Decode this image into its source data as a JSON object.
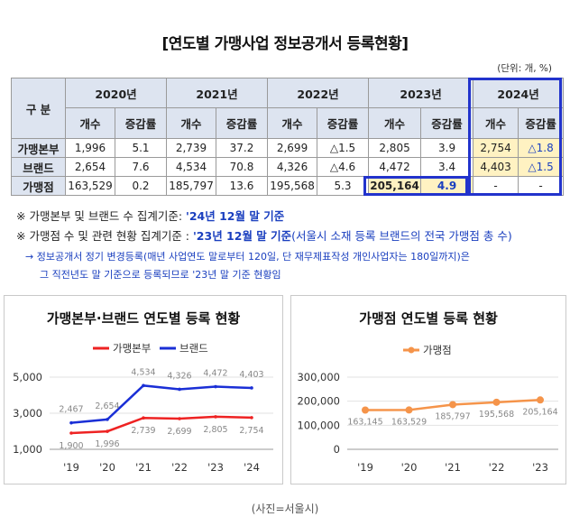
{
  "title": "[연도별 가맹사업 정보공개서 등록현황]",
  "unit": "(단위: 개, %)",
  "table": {
    "corner": "구  분",
    "years": [
      "2020년",
      "2021년",
      "2022년",
      "2023년",
      "2024년"
    ],
    "sub_count": "개수",
    "sub_rate": "증감률",
    "rows": [
      {
        "label": "가맹본부",
        "cells": [
          "1,996",
          "5.1",
          "2,739",
          "37.2",
          "2,699",
          "△1.5",
          "2,805",
          "3.9",
          "2,754",
          "△1.8"
        ]
      },
      {
        "label": "브랜드",
        "cells": [
          "2,654",
          "7.6",
          "4,534",
          "70.8",
          "4,326",
          "△4.6",
          "4,472",
          "3.4",
          "4,403",
          "△1.5"
        ]
      },
      {
        "label": "가맹점",
        "cells": [
          "163,529",
          "0.2",
          "185,797",
          "13.6",
          "195,568",
          "5.3",
          "205,164",
          "4.9",
          "-",
          "-"
        ]
      }
    ]
  },
  "notes": {
    "n1_pre": "※ 가맹본부 및 브랜드 수 집계기준: ",
    "n1_em": "'24년 12월 말 기준",
    "n2_pre": "※ 가맹점 수 및 관련 현황 집계기준 : ",
    "n2_em": "'23년 12월 말 기준",
    "n2_post": "(서울시 소재 등록 브랜드의 전국 가맹점 총 수)",
    "n3": "→ 정보공개서 정기 변경등록(매년 사업연도 말로부터 120일, 단 재무제표작성 개인사업자는 180일까지)은",
    "n4": "그 직전년도 말 기준으로 등록되므로 '23년 말 기준 현황임"
  },
  "chart_data": [
    {
      "type": "line",
      "title": "가맹본부·브랜드 연도별 등록 현황",
      "x": [
        "'19",
        "'20",
        "'21",
        "'22",
        "'23",
        "'24"
      ],
      "ylim": [
        1000,
        5000
      ],
      "yticks": [
        "1,000",
        "3,000",
        "5,000"
      ],
      "ytick_values": [
        1000,
        3000,
        5000
      ],
      "grid": true,
      "legend": "top-center",
      "series": [
        {
          "name": "가맹본부",
          "color": "#ee2222",
          "values": [
            1900,
            1996,
            2739,
            2699,
            2805,
            2754
          ],
          "labels": [
            "1,900",
            "1,996",
            "2,739",
            "2,699",
            "2,805",
            "2,754"
          ]
        },
        {
          "name": "브랜드",
          "color": "#1a2fd6",
          "values": [
            2467,
            2654,
            4534,
            4326,
            4472,
            4403
          ],
          "labels": [
            "2,467",
            "2,654",
            "4,534",
            "4,326",
            "4,472",
            "4,403"
          ]
        }
      ]
    },
    {
      "type": "line",
      "title": "가맹점 연도별 등록 현황",
      "x": [
        "'19",
        "'20",
        "'21",
        "'22",
        "'23"
      ],
      "ylim": [
        0,
        300000
      ],
      "yticks": [
        "0",
        "100,000",
        "200,000",
        "300,000"
      ],
      "ytick_values": [
        0,
        100000,
        200000,
        300000
      ],
      "grid": true,
      "legend": "top-center",
      "series": [
        {
          "name": "가맹점",
          "color": "#f5944a",
          "values": [
            163145,
            163529,
            185797,
            195568,
            205164
          ],
          "labels": [
            "163,145",
            "163,529",
            "185,797",
            "195,568",
            "205,164"
          ]
        }
      ]
    }
  ],
  "caption": "(사진=서울시)"
}
